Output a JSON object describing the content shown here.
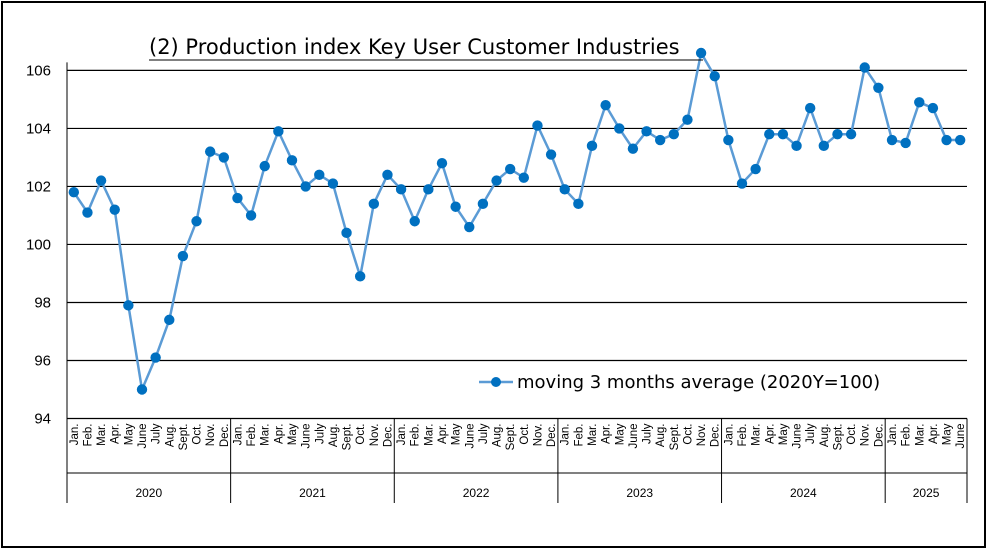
{
  "chart_data": {
    "type": "line",
    "title": "(2) Production index Key User Customer Industries",
    "xlabel": "",
    "ylabel": "",
    "ylim": [
      94,
      107
    ],
    "yticks": [
      94,
      96,
      98,
      100,
      102,
      104,
      106
    ],
    "grid": true,
    "legend_position": "bottom-right",
    "colors": {
      "line": "#5b9bd5",
      "marker": "#0070c0",
      "grid": "#000000"
    },
    "years": [
      {
        "label": "2020",
        "months": 12
      },
      {
        "label": "2021",
        "months": 12
      },
      {
        "label": "2022",
        "months": 12
      },
      {
        "label": "2023",
        "months": 12
      },
      {
        "label": "2024",
        "months": 12
      },
      {
        "label": "2025",
        "months": 6
      }
    ],
    "month_labels": [
      "Jan.",
      "Feb.",
      "Mar.",
      "Apr.",
      "May",
      "June",
      "July",
      "Aug.",
      "Sept.",
      "Oct.",
      "Nov.",
      "Dec."
    ],
    "series": [
      {
        "name": "moving 3 months average  (2020Y=100)",
        "values": [
          101.8,
          101.1,
          102.2,
          101.2,
          97.9,
          95.0,
          96.1,
          97.4,
          99.6,
          100.8,
          103.2,
          103.0,
          101.6,
          101.0,
          102.7,
          103.9,
          102.9,
          102.0,
          102.4,
          102.1,
          100.4,
          98.9,
          101.4,
          102.4,
          101.9,
          100.8,
          101.9,
          102.8,
          101.3,
          100.6,
          101.4,
          102.2,
          102.6,
          102.3,
          104.1,
          103.1,
          101.9,
          101.4,
          103.4,
          104.8,
          104.0,
          103.3,
          103.9,
          103.6,
          103.8,
          104.3,
          106.6,
          105.8,
          103.6,
          102.1,
          102.6,
          103.8,
          103.8,
          103.4,
          104.7,
          103.4,
          103.8,
          103.8,
          106.1,
          105.4,
          103.6,
          103.5,
          104.9,
          104.7,
          103.6,
          103.6
        ]
      }
    ]
  }
}
